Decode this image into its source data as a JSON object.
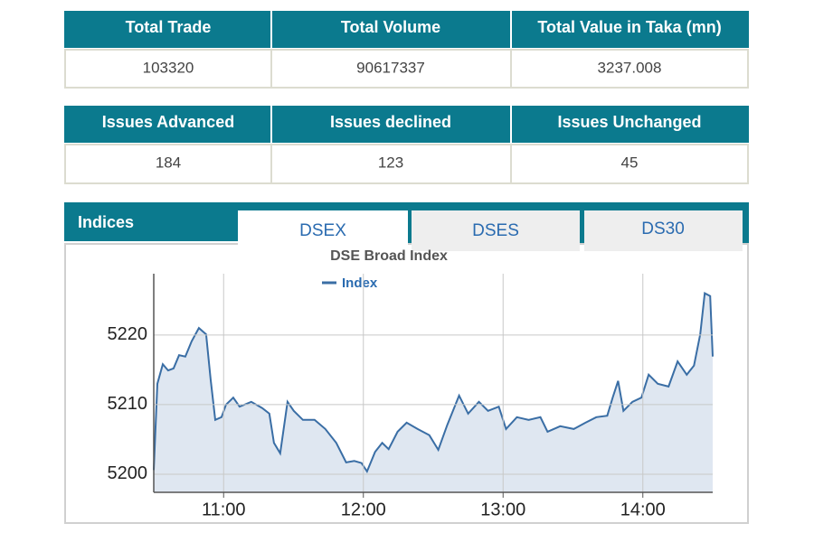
{
  "market_summary": {
    "headers": [
      "Total Trade",
      "Total Volume",
      "Total Value in Taka (mn)"
    ],
    "values": [
      "103320",
      "90617337",
      "3237.008"
    ]
  },
  "issues_summary": {
    "headers": [
      "Issues Advanced",
      "Issues declined",
      "Issues Unchanged"
    ],
    "values": [
      "184",
      "123",
      "45"
    ]
  },
  "indices": {
    "title": "Indices",
    "tabs": [
      "DSEX",
      "DSES",
      "DS30"
    ]
  },
  "chart_data": {
    "type": "area",
    "title": "DSE Broad Index",
    "x": [
      10.5,
      10.526,
      10.565,
      10.603,
      10.642,
      10.681,
      10.726,
      10.771,
      10.823,
      10.875,
      10.907,
      10.94,
      10.985,
      11.017,
      11.069,
      11.114,
      11.198,
      11.276,
      11.327,
      11.36,
      11.405,
      11.457,
      11.502,
      11.567,
      11.651,
      11.728,
      11.806,
      11.877,
      11.935,
      11.987,
      12.026,
      12.084,
      12.135,
      12.181,
      12.245,
      12.31,
      12.388,
      12.472,
      12.536,
      12.601,
      12.685,
      12.75,
      12.827,
      12.892,
      12.969,
      13.021,
      13.099,
      13.183,
      13.267,
      13.318,
      13.409,
      13.506,
      13.59,
      13.667,
      13.745,
      13.784,
      13.823,
      13.861,
      13.926,
      13.99,
      14.042,
      14.107,
      14.184,
      14.249,
      14.314,
      14.366,
      14.411,
      14.443,
      14.482,
      14.5
    ],
    "series": [
      {
        "name": "Index",
        "color": "#3a6ea5",
        "fill": "#dfe7f1",
        "values": [
          5200.6,
          5213.0,
          5215.8,
          5214.9,
          5215.2,
          5217.1,
          5216.9,
          5219.1,
          5221.0,
          5220.1,
          5213.6,
          5207.8,
          5208.2,
          5210.0,
          5211.0,
          5209.7,
          5210.4,
          5209.5,
          5208.7,
          5204.5,
          5203.0,
          5210.4,
          5209.1,
          5207.8,
          5207.8,
          5206.5,
          5204.5,
          5201.7,
          5201.9,
          5201.6,
          5200.4,
          5203.2,
          5204.5,
          5203.6,
          5206.1,
          5207.4,
          5206.5,
          5205.6,
          5203.5,
          5207.1,
          5211.3,
          5208.7,
          5210.4,
          5209.1,
          5209.7,
          5206.5,
          5208.2,
          5207.8,
          5208.2,
          5206.1,
          5206.9,
          5206.5,
          5207.4,
          5208.2,
          5208.4,
          5211.0,
          5213.4,
          5209.1,
          5210.4,
          5211.0,
          5214.3,
          5213.0,
          5212.6,
          5216.2,
          5214.3,
          5215.6,
          5220.1,
          5226.0,
          5225.6,
          5216.9
        ]
      }
    ],
    "xlim": [
      10.5,
      14.5
    ],
    "xticks": [
      {
        "value": 11,
        "label": "11:00"
      },
      {
        "value": 12,
        "label": "12:00"
      },
      {
        "value": 13,
        "label": "13:00"
      },
      {
        "value": 14,
        "label": "14:00"
      }
    ],
    "ylim": [
      5197.4,
      5228.8
    ],
    "yticks": [
      5200,
      5210,
      5220
    ],
    "grid": true
  }
}
